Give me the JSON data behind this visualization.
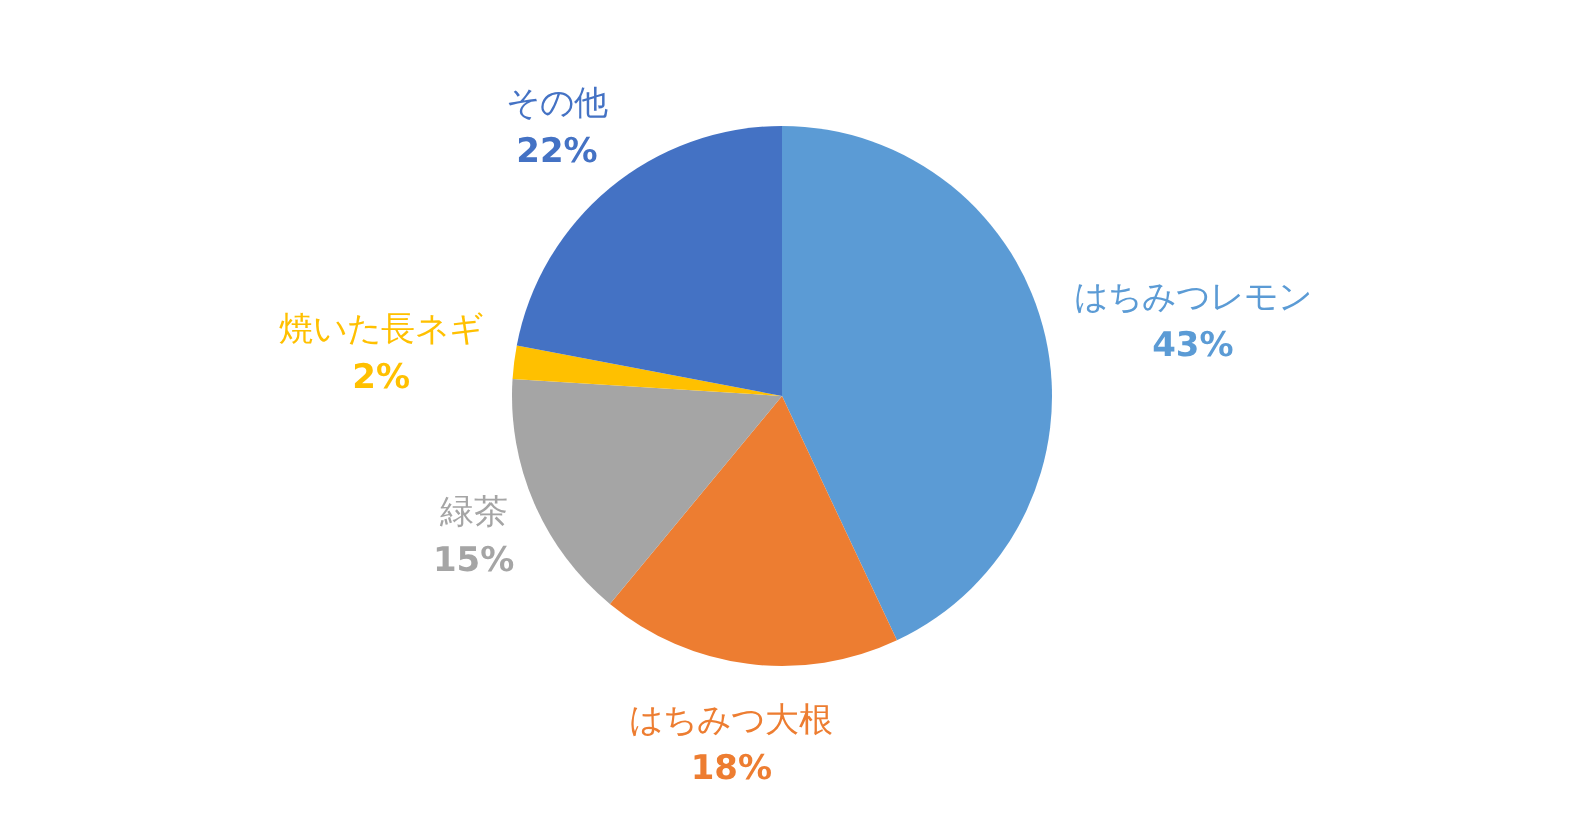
{
  "chart_data": {
    "type": "pie",
    "categories": [
      "はちみつレモン",
      "はちみつ大根",
      "緑茶",
      "焼いた長ネギ",
      "その他"
    ],
    "values": [
      43,
      18,
      15,
      2,
      22
    ],
    "colors": [
      "#5b9bd5",
      "#ed7d31",
      "#a5a5a5",
      "#ffc000",
      "#4472c4"
    ],
    "value_labels": [
      "43%",
      "18%",
      "15%",
      "2%",
      "22%"
    ]
  }
}
